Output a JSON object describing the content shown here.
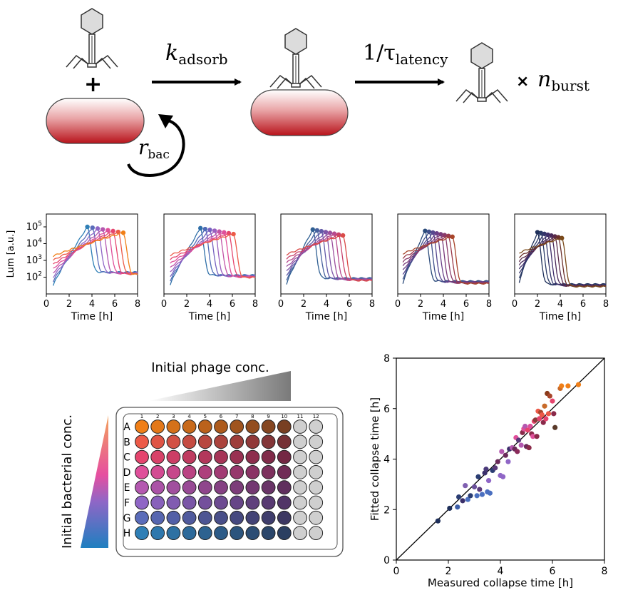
{
  "scheme": {
    "plus": "+",
    "rate_adsorb_k": "k",
    "rate_adsorb_sub": "adsorb",
    "rate_latency_pre": "1/τ",
    "rate_latency_sub": "latency",
    "times": "×",
    "burst_n": "n",
    "burst_sub": "burst",
    "growth_r": "r",
    "growth_sub": "bac"
  },
  "timecourses": {
    "ylabel": "Lum [a.u.]",
    "xlabel": "Time [h]",
    "xticks": [
      "0",
      "2",
      "4",
      "6",
      "8"
    ],
    "ytick_base": "10",
    "ytick_exps": [
      "2",
      "3",
      "4",
      "5"
    ]
  },
  "plate": {
    "phage_label": "Initial phage conc.",
    "bacterial_label": "Initial bacterial conc.",
    "rows": [
      "A",
      "B",
      "C",
      "D",
      "E",
      "F",
      "G",
      "H"
    ],
    "cols": [
      "1",
      "2",
      "3",
      "4",
      "5",
      "6",
      "7",
      "8",
      "9",
      "10",
      "11",
      "12"
    ],
    "row_colors": [
      "#f07f18",
      "#ec5a48",
      "#e5456e",
      "#df4f9a",
      "#b458b0",
      "#8f66c6",
      "#5a6cba",
      "#2f7fb6"
    ],
    "empty_well_color": "#cfcfcf"
  },
  "chart_data": {
    "type": "scatter",
    "xlabel": "Measured collapse time [h]",
    "ylabel": "Fitted collapse time [h]",
    "xlim": [
      0,
      8
    ],
    "ylim": [
      0,
      8
    ],
    "xticks": [
      "0",
      "2",
      "4",
      "6",
      "8"
    ],
    "yticks": [
      "0",
      "2",
      "4",
      "6",
      "8"
    ],
    "reference_line": "y = x",
    "points": [
      {
        "x": 1.6,
        "y": 1.55,
        "c": "#1e2f5a"
      },
      {
        "x": 2.05,
        "y": 2.05,
        "c": "#1e2f5a"
      },
      {
        "x": 2.35,
        "y": 2.1,
        "c": "#3d5fa8"
      },
      {
        "x": 2.4,
        "y": 2.5,
        "c": "#2a3d73"
      },
      {
        "x": 2.55,
        "y": 2.35,
        "c": "#3a2f6a"
      },
      {
        "x": 2.65,
        "y": 2.95,
        "c": "#7f5fb0"
      },
      {
        "x": 2.75,
        "y": 2.4,
        "c": "#4a6fc0"
      },
      {
        "x": 2.85,
        "y": 2.55,
        "c": "#2a3d73"
      },
      {
        "x": 3.0,
        "y": 2.9,
        "c": "#6a4f9a"
      },
      {
        "x": 3.1,
        "y": 2.55,
        "c": "#4a6fc0"
      },
      {
        "x": 3.15,
        "y": 3.3,
        "c": "#2a3d73"
      },
      {
        "x": 3.2,
        "y": 2.8,
        "c": "#5a3a7a"
      },
      {
        "x": 3.3,
        "y": 2.6,
        "c": "#4a6fc0"
      },
      {
        "x": 3.4,
        "y": 3.45,
        "c": "#3a2f6a"
      },
      {
        "x": 3.45,
        "y": 3.6,
        "c": "#4a3a7a"
      },
      {
        "x": 3.5,
        "y": 2.7,
        "c": "#4a6fc0"
      },
      {
        "x": 3.55,
        "y": 3.15,
        "c": "#8f66c6"
      },
      {
        "x": 3.6,
        "y": 2.65,
        "c": "#4a6fc0"
      },
      {
        "x": 3.7,
        "y": 3.55,
        "c": "#2a3d73"
      },
      {
        "x": 3.8,
        "y": 3.65,
        "c": "#5a3a7a"
      },
      {
        "x": 3.9,
        "y": 3.9,
        "c": "#6a2a5a"
      },
      {
        "x": 4.0,
        "y": 3.35,
        "c": "#8f66c6"
      },
      {
        "x": 4.05,
        "y": 4.3,
        "c": "#b458b0"
      },
      {
        "x": 4.1,
        "y": 3.3,
        "c": "#8f66c6"
      },
      {
        "x": 4.2,
        "y": 4.15,
        "c": "#6a2a5a"
      },
      {
        "x": 4.3,
        "y": 3.9,
        "c": "#8f66c6"
      },
      {
        "x": 4.35,
        "y": 4.4,
        "c": "#3a2f6a"
      },
      {
        "x": 4.45,
        "y": 4.45,
        "c": "#b458b0"
      },
      {
        "x": 4.55,
        "y": 4.4,
        "c": "#6a2a5a"
      },
      {
        "x": 4.6,
        "y": 4.85,
        "c": "#df4f9a"
      },
      {
        "x": 4.65,
        "y": 4.3,
        "c": "#8a2a5a"
      },
      {
        "x": 4.7,
        "y": 4.75,
        "c": "#5a3a7a"
      },
      {
        "x": 4.8,
        "y": 4.55,
        "c": "#b458b0"
      },
      {
        "x": 4.85,
        "y": 5.05,
        "c": "#8a2a4a"
      },
      {
        "x": 4.9,
        "y": 5.2,
        "c": "#df4f9a"
      },
      {
        "x": 4.95,
        "y": 5.3,
        "c": "#b458b0"
      },
      {
        "x": 5.0,
        "y": 4.5,
        "c": "#6a2a5a"
      },
      {
        "x": 5.05,
        "y": 5.15,
        "c": "#e5456e"
      },
      {
        "x": 5.1,
        "y": 4.45,
        "c": "#8a2a4a"
      },
      {
        "x": 5.15,
        "y": 5.3,
        "c": "#df4f9a"
      },
      {
        "x": 5.2,
        "y": 5.0,
        "c": "#8a2a4a"
      },
      {
        "x": 5.25,
        "y": 4.9,
        "c": "#df4f9a"
      },
      {
        "x": 5.3,
        "y": 5.5,
        "c": "#e5456e"
      },
      {
        "x": 5.35,
        "y": 5.55,
        "c": "#8a3a3a"
      },
      {
        "x": 5.4,
        "y": 4.9,
        "c": "#8a2a4a"
      },
      {
        "x": 5.45,
        "y": 5.9,
        "c": "#ec5a48"
      },
      {
        "x": 5.5,
        "y": 5.6,
        "c": "#e5456e"
      },
      {
        "x": 5.55,
        "y": 5.85,
        "c": "#a8452a"
      },
      {
        "x": 5.6,
        "y": 5.75,
        "c": "#ec5a48"
      },
      {
        "x": 5.65,
        "y": 5.45,
        "c": "#8a2a4a"
      },
      {
        "x": 5.7,
        "y": 6.1,
        "c": "#c86a2a"
      },
      {
        "x": 5.75,
        "y": 5.6,
        "c": "#e5456e"
      },
      {
        "x": 5.8,
        "y": 6.6,
        "c": "#8a3a1a"
      },
      {
        "x": 5.85,
        "y": 5.8,
        "c": "#ec5a48"
      },
      {
        "x": 5.9,
        "y": 6.5,
        "c": "#a8452a"
      },
      {
        "x": 6.0,
        "y": 6.3,
        "c": "#e5456e"
      },
      {
        "x": 6.05,
        "y": 5.8,
        "c": "#8a2a4a"
      },
      {
        "x": 6.1,
        "y": 5.25,
        "c": "#5a3a2a"
      },
      {
        "x": 6.3,
        "y": 6.8,
        "c": "#c86a2a"
      },
      {
        "x": 6.35,
        "y": 6.9,
        "c": "#f07f18"
      },
      {
        "x": 6.6,
        "y": 6.9,
        "c": "#f07f18"
      },
      {
        "x": 7.0,
        "y": 6.95,
        "c": "#f07f18"
      }
    ]
  }
}
